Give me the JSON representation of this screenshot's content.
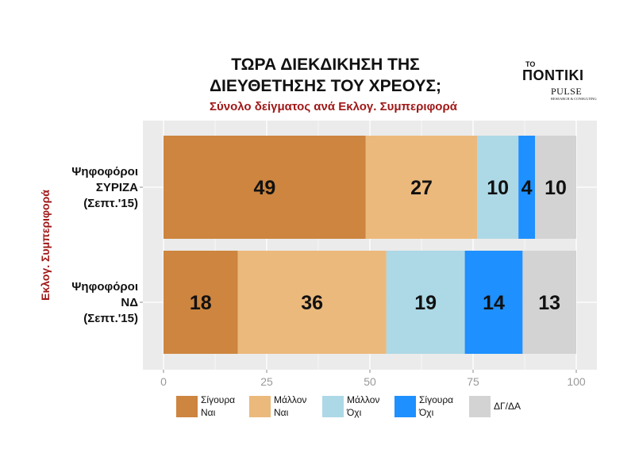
{
  "title_lines": [
    "ΤΩΡΑ ΔΙΕΚΔΙΚΗΣΗ ΤΗΣ",
    "ΔΙΕΥΘΕΤΗΣΗΣ ΤΟΥ ΧΡΕΟΥΣ;"
  ],
  "subtitle": "Σύνολο δείγματος ανά Εκλογ. Συμπεριφορά",
  "logo": {
    "small": "ΤΟ",
    "name": "ΠΟΝΤΙΚΙ",
    "pulse": "PULSE",
    "sub": "RESEARCH & CONSULTING"
  },
  "colors": {
    "panel_bg": "#ebebeb",
    "grid": "#ffffff",
    "axis_title": "#a01818",
    "tick_label": "#999999"
  },
  "chart_data": {
    "type": "bar",
    "orientation": "horizontal",
    "stacked": true,
    "ylabel": "Εκλογ. Συμπεριφορά",
    "categories": [
      [
        "Ψηφοφόροι",
        "ΣΥΡΙΖΑ",
        "(Σεπτ.'15)"
      ],
      [
        "Ψηφοφόροι",
        "ΝΔ",
        "(Σεπτ.'15)"
      ]
    ],
    "xlim": [
      0,
      100
    ],
    "xticks": [
      0,
      25,
      50,
      75,
      100
    ],
    "grid": true,
    "legend_position": "bottom",
    "series": [
      {
        "name": [
          "Σίγουρα",
          "Ναι"
        ],
        "color": "#cd853f",
        "values": [
          49,
          18
        ]
      },
      {
        "name": [
          "Μάλλον",
          "Ναι"
        ],
        "color": "#ebb97c",
        "values": [
          27,
          36
        ]
      },
      {
        "name": [
          "Μάλλον",
          "Όχι"
        ],
        "color": "#add8e6",
        "values": [
          10,
          19
        ]
      },
      {
        "name": [
          "Σίγουρα",
          "Όχι"
        ],
        "color": "#1e90ff",
        "values": [
          4,
          14
        ]
      },
      {
        "name": [
          "ΔΓ/ΔΑ"
        ],
        "color": "#d3d3d3",
        "values": [
          10,
          13
        ]
      }
    ]
  }
}
